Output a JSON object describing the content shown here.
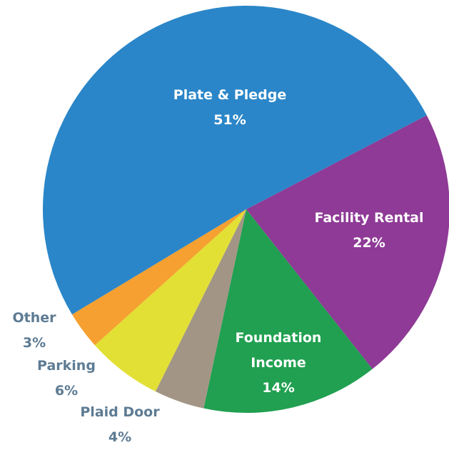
{
  "chart_data": {
    "type": "pie",
    "categories": [
      "Facility Rental",
      "Foundation Income",
      "Plaid Door",
      "Parking",
      "Other",
      "Plate & Pledge"
    ],
    "values": [
      22,
      14,
      4,
      6,
      3,
      51
    ],
    "value_labels": [
      "22%",
      "14%",
      "4%",
      "6%",
      "3%",
      "51%"
    ],
    "colors": [
      "#8e3a96",
      "#20a050",
      "#a39585",
      "#e2e035",
      "#f5a030",
      "#2a86c8"
    ]
  }
}
